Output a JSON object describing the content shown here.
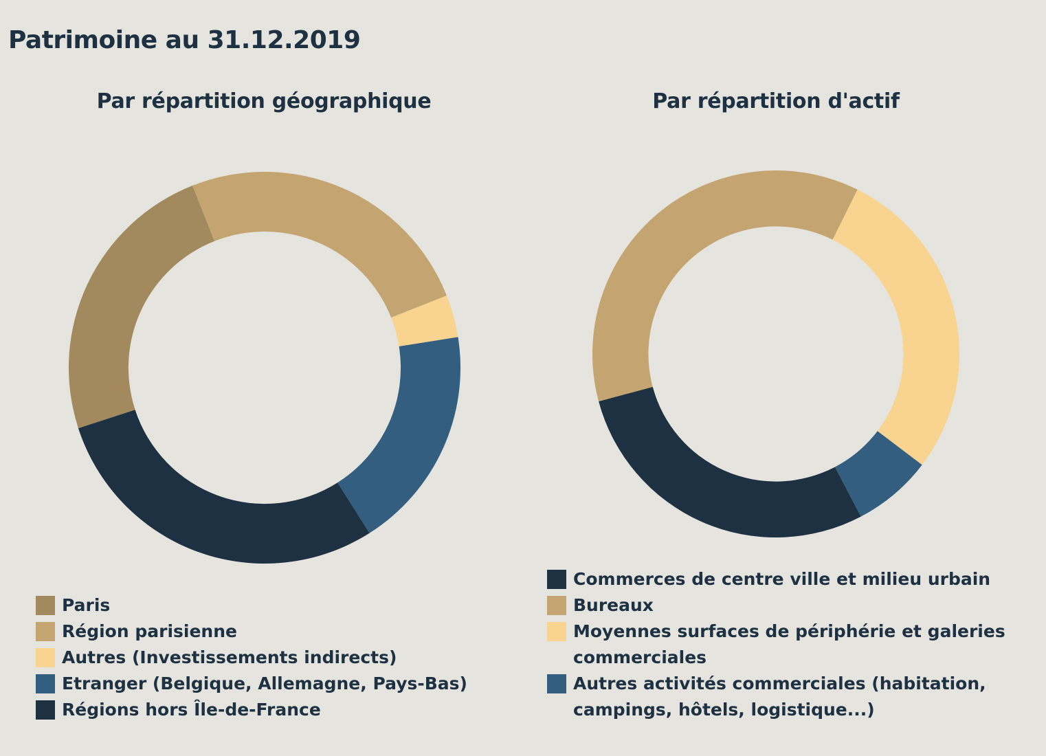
{
  "page": {
    "title": "Patrimoine au 31.12.2019"
  },
  "chart_data": [
    {
      "type": "pie",
      "donut": true,
      "title": "Par répartition géographique",
      "start_angle_deg": 162,
      "categories": [
        "Paris",
        "Région parisienne",
        "Autres (Investissements indirects)",
        "Etranger (Belgique, Allemagne, Pays-Bas)",
        "Régions hors Île-de-France"
      ],
      "values": [
        24,
        25,
        3.5,
        18.5,
        29
      ],
      "colors": [
        "#a38a5e",
        "#c4a571",
        "#f9d490",
        "#335e80",
        "#1e3142"
      ],
      "legend_position": "bottom",
      "legend_order": [
        0,
        1,
        2,
        3,
        4
      ]
    },
    {
      "type": "pie",
      "donut": true,
      "title": "Par répartition d'actif",
      "start_angle_deg": 165,
      "categories": [
        "Bureaux",
        "Moyennes surfaces de périphérie et galeries commerciales",
        "Autres activités commerciales (habitation, campings, hôtels, logistique...)",
        "Commerces de centre ville et milieu urbain"
      ],
      "values": [
        36.5,
        28,
        7,
        28.5
      ],
      "colors": [
        "#c4a571",
        "#f9d490",
        "#335e80",
        "#1e3142"
      ],
      "legend_position": "bottom",
      "legend_order": [
        3,
        0,
        1,
        2
      ]
    }
  ]
}
